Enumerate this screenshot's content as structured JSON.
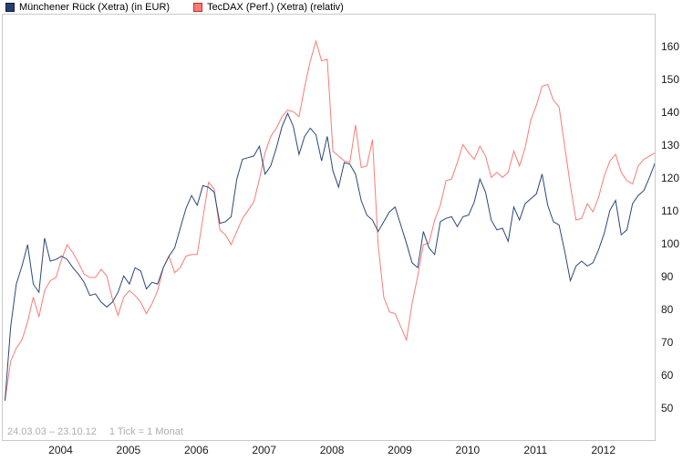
{
  "legend": {
    "items": [
      {
        "label": "Münchener Rück (Xetra) (in EUR)",
        "swatch_fill": "#25406E",
        "swatch_border": "#0F1F3D"
      },
      {
        "label": "TecDAX (Perf.) (Xetra) (relativ)",
        "swatch_fill": "#FA7A72",
        "swatch_border": "#C03030"
      }
    ]
  },
  "footer": {
    "date_range": "24.03.03 – 23.10.12",
    "tick_info": "1 Tick = 1 Monat"
  },
  "chart_data": {
    "type": "line",
    "title": "",
    "x_unit": "month",
    "x_start": "2003-03",
    "x_end": "2012-10",
    "tick_note": "1 tick = 1 month",
    "grid": false,
    "legend_position": "top-left",
    "y_axis_side": "right",
    "ylim": [
      47,
      163
    ],
    "y_ticks": [
      160,
      150,
      140,
      130,
      120,
      110,
      100,
      90,
      80,
      70,
      60,
      50
    ],
    "x_year_labels": [
      "2004",
      "2005",
      "2006",
      "2007",
      "2008",
      "2009",
      "2010",
      "2011",
      "2012"
    ],
    "series": [
      {
        "name": "Münchener Rück (Xetra) (in EUR)",
        "color": "#2A4878",
        "values": [
          52.5,
          75,
          88,
          93.5,
          100,
          88,
          85.5,
          102,
          95,
          95.5,
          96.5,
          95.5,
          93,
          91,
          88.5,
          84.5,
          85,
          82.5,
          81,
          82.5,
          85.5,
          90.5,
          88,
          93,
          92,
          86.5,
          88.5,
          88,
          93,
          96.5,
          99,
          105,
          111,
          115,
          112,
          118,
          117.5,
          116,
          106.5,
          107,
          108.5,
          120,
          126,
          126.5,
          127,
          130,
          121.5,
          124,
          129.5,
          136,
          140,
          136,
          127.5,
          133,
          135.5,
          133.5,
          125.5,
          133,
          122.5,
          117.5,
          125,
          124.5,
          121.5,
          113.5,
          109,
          107.5,
          104,
          107,
          110,
          111.5,
          106,
          100.5,
          94.5,
          93,
          104,
          99,
          97,
          107,
          108,
          108.5,
          105.5,
          108.5,
          109,
          113,
          120,
          116,
          107.5,
          104.5,
          105,
          101,
          111.5,
          107.5,
          112.5,
          114,
          115.5,
          121.5,
          112,
          107,
          106,
          98,
          89,
          93.5,
          95,
          93.5,
          94.5,
          98.5,
          103.5,
          110.5,
          113.5,
          103,
          104.5,
          112.5,
          115,
          116.5,
          120.5,
          125
        ]
      },
      {
        "name": "TecDAX (Perf.) (Xetra) (relativ)",
        "color": "#F87C78",
        "values": [
          52.5,
          64.5,
          68.5,
          71,
          76.5,
          84,
          78,
          86,
          89,
          90,
          95.5,
          100,
          97.5,
          94.5,
          91,
          90,
          90,
          92.5,
          90.5,
          83.5,
          78.5,
          84,
          86,
          84.5,
          82.5,
          79,
          82,
          86,
          93,
          96.5,
          91.5,
          93,
          96.5,
          97,
          97,
          108,
          119,
          117,
          104.5,
          103,
          100,
          104,
          108,
          110.5,
          113,
          120,
          128,
          133,
          135.5,
          139,
          141,
          140.5,
          139,
          148,
          156,
          162,
          156,
          156.5,
          128.5,
          127,
          125.5,
          125,
          136.5,
          123.5,
          124,
          132,
          100,
          84,
          79.5,
          79,
          75,
          71,
          82,
          90.5,
          100,
          100.5,
          107.5,
          112,
          119.5,
          120,
          125,
          130.5,
          128,
          126,
          130,
          127,
          120.5,
          122,
          120.5,
          122,
          128.5,
          124,
          129.5,
          138,
          142.5,
          148.3,
          148.8,
          144,
          142,
          130,
          118,
          107.5,
          108,
          112.5,
          110,
          114.5,
          121,
          125.5,
          127.5,
          122,
          119.5,
          118.5,
          124,
          126,
          127,
          128
        ]
      }
    ]
  }
}
